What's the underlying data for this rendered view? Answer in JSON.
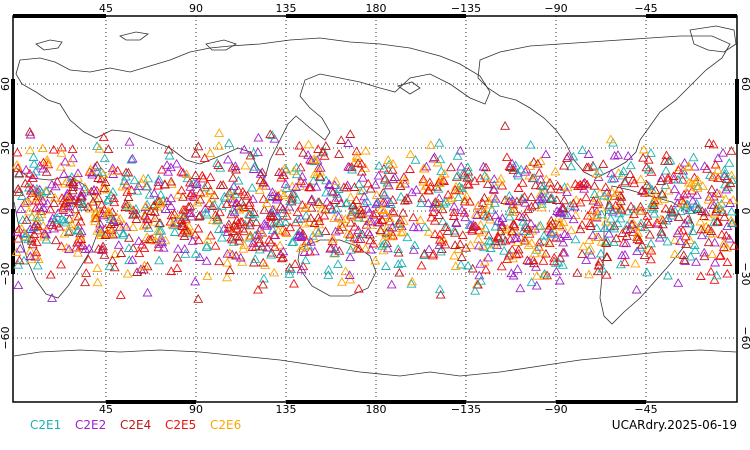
{
  "map": {
    "projection": "cylindrical equidistant",
    "grid_lines": "dotted",
    "lon_ticks": [
      "45",
      "90",
      "135",
      "180",
      "−135",
      "−90",
      "−45"
    ],
    "lat_ticks": [
      "60",
      "30",
      "0",
      "−30",
      "−60"
    ],
    "marker_shape": "open-triangle"
  },
  "legend": {
    "items": [
      {
        "label": "C2E1",
        "color": "#1cb2b2"
      },
      {
        "label": "C2E2",
        "color": "#a020d0"
      },
      {
        "label": "C2E4",
        "color": "#c01818"
      },
      {
        "label": "C2E5",
        "color": "#ee1010"
      },
      {
        "label": "C2E6",
        "color": "#ffa500"
      }
    ]
  },
  "footer": {
    "stamp": "UCARdry.2025-06-19"
  }
}
